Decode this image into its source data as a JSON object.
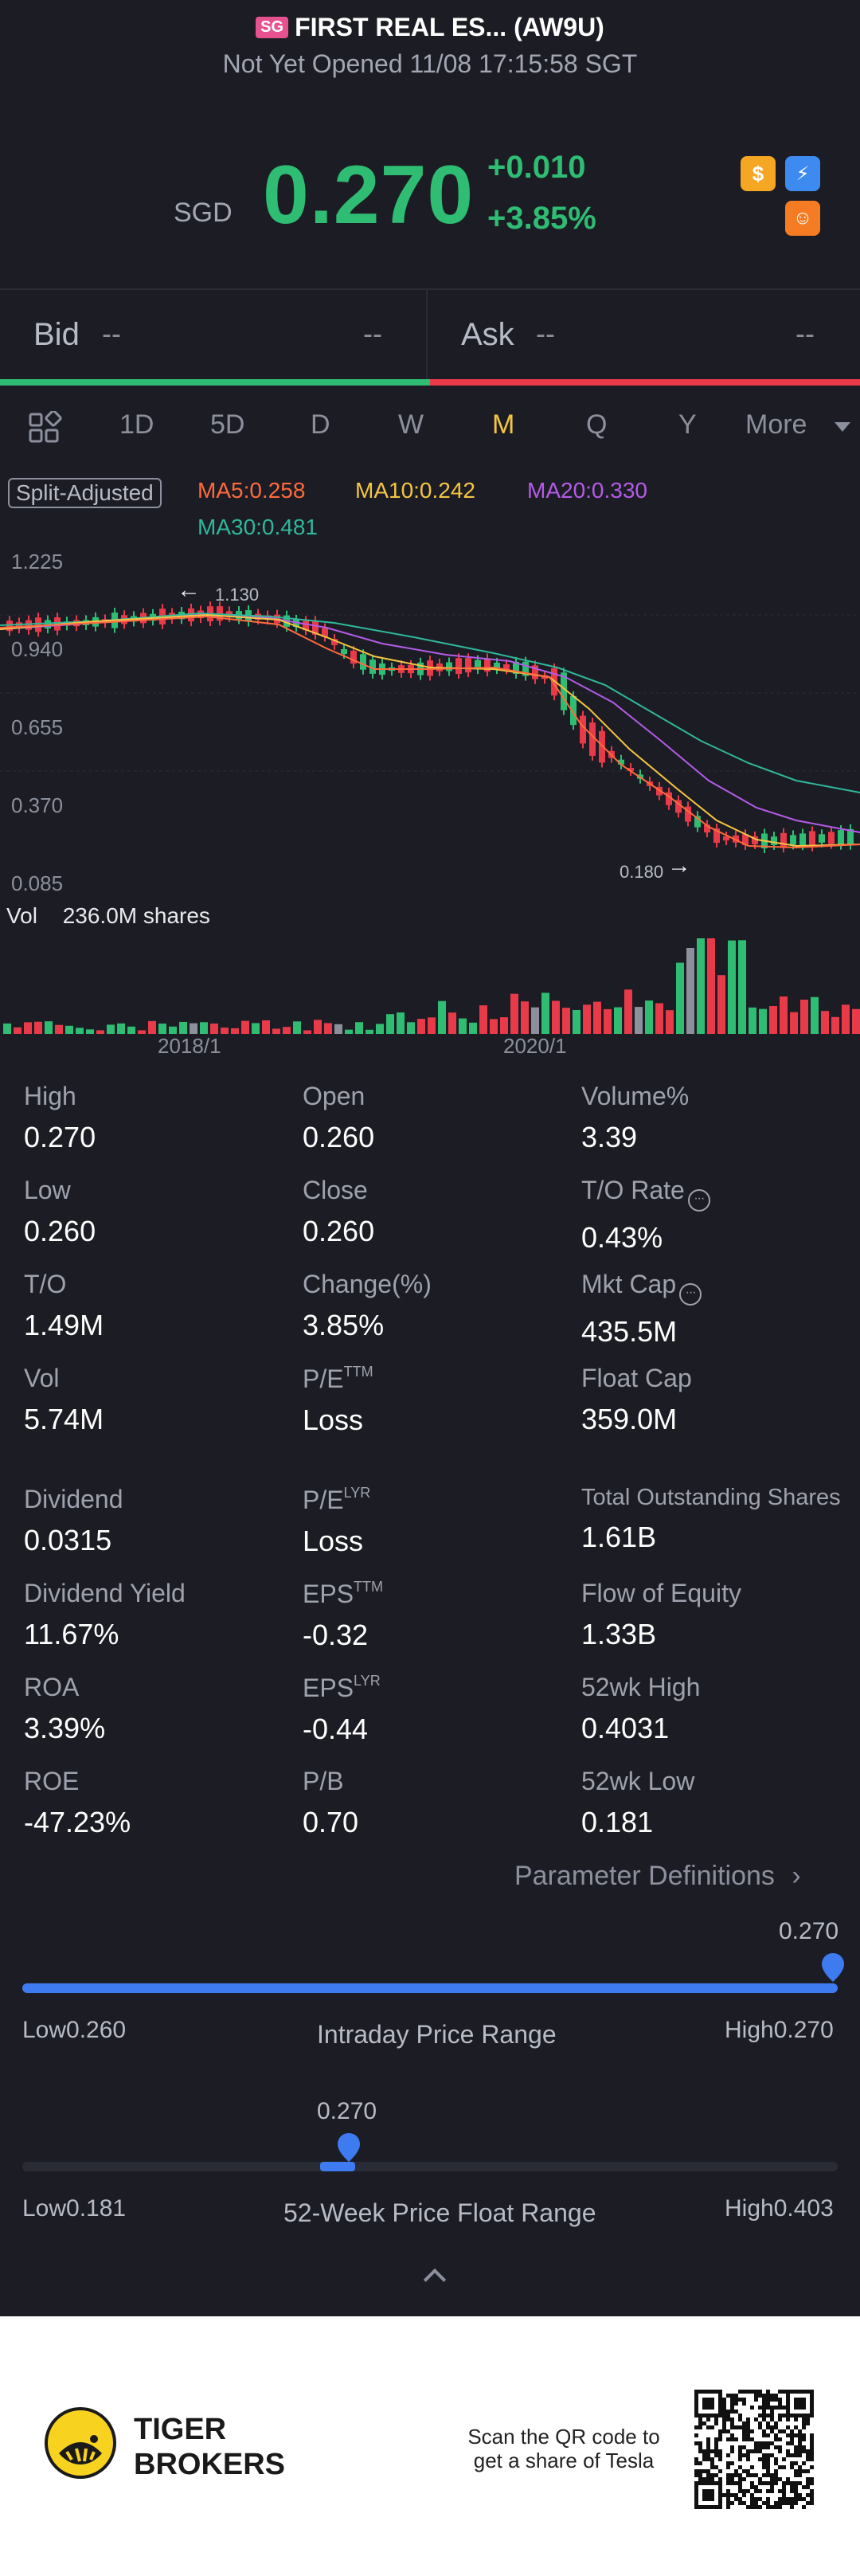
{
  "header": {
    "badge": "SG",
    "title": "FIRST REAL ES... (AW9U)",
    "status": "Not Yet Opened 11/08 17:15:58 SGT",
    "currency": "SGD",
    "price": "0.270",
    "change": "+0.010",
    "change_pct": "+3.85%",
    "icons": [
      "dollar-icon",
      "flash-icon",
      "tiger-icon"
    ]
  },
  "quote": {
    "bid_label": "Bid",
    "bid_left": "--",
    "bid_right": "--",
    "ask_label": "Ask",
    "ask_left": "--",
    "ask_right": "--"
  },
  "tabs": [
    {
      "label": "1D"
    },
    {
      "label": "5D"
    },
    {
      "label": "D"
    },
    {
      "label": "W"
    },
    {
      "label": "M",
      "active": true
    },
    {
      "label": "Q"
    },
    {
      "label": "Y"
    },
    {
      "label": "More"
    }
  ],
  "legend": {
    "split": "Split-Adjusted",
    "ma5": "MA5:0.258",
    "ma10": "MA10:0.242",
    "ma20": "MA20:0.330",
    "ma30": "MA30:0.481",
    "colors": {
      "ma5": "#ff6a3d",
      "ma10": "#f5c542",
      "ma20": "#b45be8",
      "ma30": "#2fb89a",
      "up": "#2ebd73",
      "down": "#e93a4a"
    }
  },
  "chart_data": {
    "type": "candlestick",
    "y_ticks": [
      "1.225",
      "0.940",
      "0.655",
      "0.370",
      "0.085"
    ],
    "ylim": [
      0.085,
      1.225
    ],
    "high_marker": "1.130",
    "low_marker": "0.180",
    "volume_label": "Vol",
    "volume_value": "236.0M shares",
    "x_ticks": [
      "2018/1",
      "2020/1"
    ]
  },
  "stats": {
    "high_label": "High",
    "high": "0.270",
    "open_label": "Open",
    "open": "0.260",
    "volpct_label": "Volume%",
    "volpct": "3.39",
    "low_label": "Low",
    "low": "0.260",
    "close_label": "Close",
    "close": "0.260",
    "tor_label": "T/O Rate",
    "tor": "0.43%",
    "to_label": "T/O",
    "to": "1.49M",
    "chg_label": "Change(%)",
    "chg": "3.85%",
    "mktcap_label": "Mkt Cap",
    "mktcap": "435.5M",
    "vol_label": "Vol",
    "vol": "5.74M",
    "pe_ttm_label": "P/E",
    "pe_ttm_sup": "TTM",
    "pe_ttm": "Loss",
    "floatcap_label": "Float Cap",
    "floatcap": "359.0M",
    "div_label": "Dividend",
    "div": "0.0315",
    "pe_lyr_label": "P/E",
    "pe_lyr_sup": "LYR",
    "pe_lyr": "Loss",
    "tos_label": "Total Outstanding Shares",
    "tos": "1.61B",
    "dy_label": "Dividend Yield",
    "dy": "11.67%",
    "eps_ttm_label": "EPS",
    "eps_ttm_sup": "TTM",
    "eps_ttm": "-0.32",
    "foe_label": "Flow of Equity",
    "foe": "1.33B",
    "roa_label": "ROA",
    "roa": "3.39%",
    "eps_lyr_label": "EPS",
    "eps_lyr_sup": "LYR",
    "eps_lyr": "-0.44",
    "h52_label": "52wk High",
    "h52": "0.4031",
    "roe_label": "ROE",
    "roe": "-47.23%",
    "pb_label": "P/B",
    "pb": "0.70",
    "l52_label": "52wk Low",
    "l52": "0.181"
  },
  "param_def": "Parameter Definitions",
  "intraday": {
    "marker": "0.270",
    "low": "Low0.260",
    "high": "High0.270",
    "caption": "Intraday Price Range",
    "fill": 1.0
  },
  "week52": {
    "marker": "0.270",
    "low": "Low0.181",
    "high": "High0.403",
    "caption": "52-Week Price Float Range",
    "fill": 0.4
  },
  "footer": {
    "brand_line1": "TIGER",
    "brand_line2": "BROKERS",
    "qr_line1": "Scan the QR code to",
    "qr_line2": "get a share of Tesla"
  }
}
